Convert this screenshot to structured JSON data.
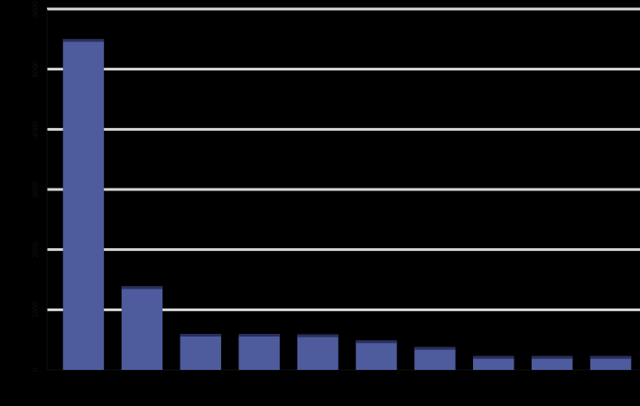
{
  "chart_data": {
    "type": "bar",
    "title": "",
    "xlabel": "",
    "ylabel": "",
    "categories": [
      "",
      "",
      "",
      "",
      "",
      "",
      "",
      "",
      "",
      ""
    ],
    "values": [
      5500,
      1390,
      600,
      600,
      590,
      490,
      380,
      230,
      230,
      230
    ],
    "ylim": [
      0,
      6000
    ],
    "yticks": [
      0,
      1000,
      2000,
      3000,
      4000,
      5000,
      6000
    ],
    "grid": true,
    "colors": {
      "background": "#000000",
      "bar": "#4e5b9c",
      "bar_cap": "#2a2f5e",
      "gridline": "#d8d8d8",
      "axis": "#111111"
    }
  }
}
